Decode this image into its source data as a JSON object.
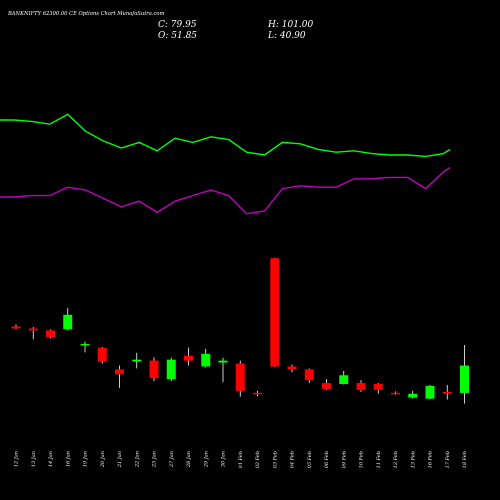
{
  "header": {
    "title": "BANKNIFTY 62300.00 CE Options Chart MunafaSutra.com",
    "close_label": "C: 79.95",
    "open_label": "O: 51.85",
    "high_label": "H: 101.00",
    "low_label": "L: 40.90"
  },
  "colors": {
    "background": "#000000",
    "bull": "#00ff00",
    "bear": "#ff0000",
    "wick": "#ffffff",
    "line_green": "#00ff00",
    "line_magenta": "#c000c0",
    "text": "#ffffff"
  },
  "chart_data": {
    "type": "candlestick",
    "title": "BANKNIFTY 62300.00 CE Options Chart MunafaSutra.com",
    "categories": [
      "12 Jan",
      "13 Jan",
      "14 Jan",
      "16 Jan",
      "19 Jan",
      "20 Jan",
      "21 Jan",
      "22 Jan",
      "23 Jan",
      "27 Jan",
      "28 Jan",
      "29 Jan",
      "30 Jan",
      "01 Feb",
      "02 Feb",
      "03 Feb",
      "04 Feb",
      "05 Feb",
      "06 Feb",
      "09 Feb",
      "10 Feb",
      "11 Feb",
      "12 Feb",
      "13 Feb",
      "16 Feb",
      "17 Feb",
      "18 Feb"
    ],
    "ohlc": [
      {
        "o": 120.0,
        "h": 122.0,
        "l": 117.0,
        "c": 118.0
      },
      {
        "o": 118.0,
        "h": 119.5,
        "l": 107.0,
        "c": 116.0
      },
      {
        "o": 116.0,
        "h": 117.0,
        "l": 108.0,
        "c": 109.0
      },
      {
        "o": 117.0,
        "h": 139.0,
        "l": 116.0,
        "c": 132.0
      },
      {
        "o": 101.0,
        "h": 104.5,
        "l": 93.5,
        "c": 102.0
      },
      {
        "o": 98.0,
        "h": 99.0,
        "l": 82.0,
        "c": 84.0
      },
      {
        "o": 76.0,
        "h": 80.0,
        "l": 57.0,
        "c": 71.0
      },
      {
        "o": 84.0,
        "h": 93.0,
        "l": 77.0,
        "c": 86.0
      },
      {
        "o": 85.0,
        "h": 88.5,
        "l": 64.0,
        "c": 67.0
      },
      {
        "o": 66.0,
        "h": 88.0,
        "l": 64.0,
        "c": 86.0
      },
      {
        "o": 90.0,
        "h": 98.5,
        "l": 80.0,
        "c": 85.0
      },
      {
        "o": 79.0,
        "h": 97.0,
        "l": 78.0,
        "c": 92.0
      },
      {
        "o": 83.0,
        "h": 88.0,
        "l": 63.0,
        "c": 85.0
      },
      {
        "o": 82.0,
        "h": 85.0,
        "l": 48.0,
        "c": 54.0
      },
      {
        "o": 52.0,
        "h": 54.0,
        "l": 48.5,
        "c": 51.0
      },
      {
        "o": 190.0,
        "h": 190.5,
        "l": 78.5,
        "c": 79.0
      },
      {
        "o": 79.0,
        "h": 81.0,
        "l": 73.0,
        "c": 76.0
      },
      {
        "o": 76.0,
        "h": 77.0,
        "l": 62.0,
        "c": 65.0
      },
      {
        "o": 62.0,
        "h": 66.0,
        "l": 55.0,
        "c": 56.0
      },
      {
        "o": 61.0,
        "h": 74.5,
        "l": 60.5,
        "c": 70.0
      },
      {
        "o": 62.0,
        "h": 65.0,
        "l": 53.0,
        "c": 55.0
      },
      {
        "o": 61.0,
        "h": 62.0,
        "l": 51.0,
        "c": 55.0
      },
      {
        "o": 52.0,
        "h": 53.5,
        "l": 50.0,
        "c": 51.0
      },
      {
        "o": 47.0,
        "h": 54.0,
        "l": 46.0,
        "c": 51.0
      },
      {
        "o": 46.0,
        "h": 60.0,
        "l": 45.5,
        "c": 59.0
      },
      {
        "o": 53.0,
        "h": 60.0,
        "l": 45.0,
        "c": 51.0
      },
      {
        "o": 51.85,
        "h": 101.0,
        "l": 40.9,
        "c": 79.95
      }
    ],
    "series": [
      {
        "values": [
          100,
          100,
          99,
          97,
          104,
          92,
          85,
          80,
          84,
          78,
          87,
          84,
          88,
          86,
          77,
          75,
          84,
          83,
          79,
          77,
          78,
          76,
          75,
          75,
          74,
          76,
          79
        ]
      },
      {
        "values": [
          45,
          45,
          46,
          46,
          52,
          50,
          44,
          38,
          42,
          34,
          42,
          46,
          50,
          46,
          33,
          35,
          51,
          53,
          52,
          52,
          58,
          58,
          59,
          59,
          51,
          63,
          66
        ]
      }
    ]
  }
}
